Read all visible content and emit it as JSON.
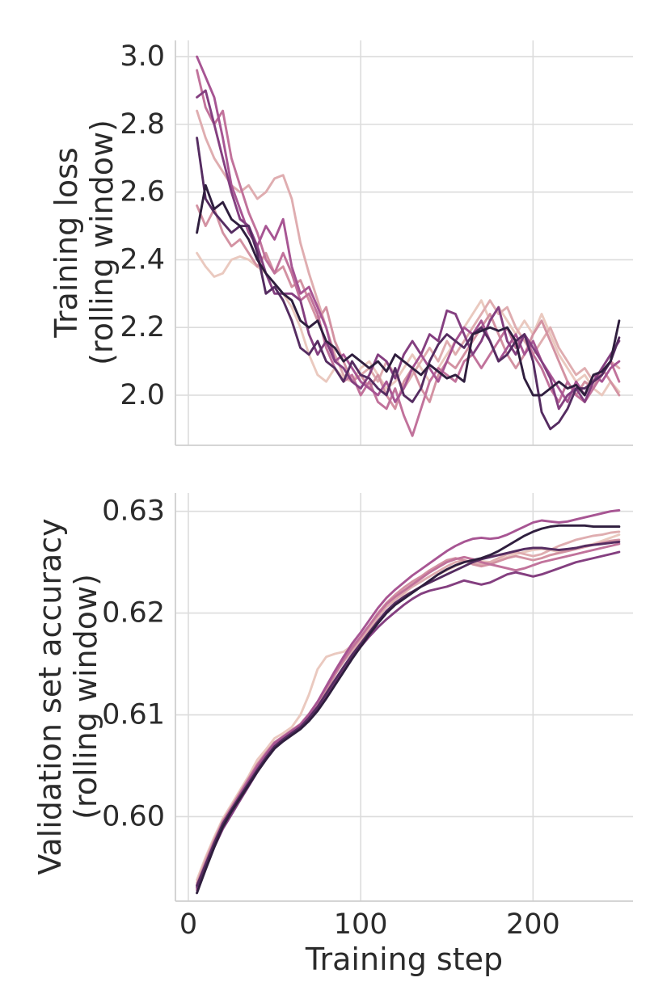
{
  "figure": {
    "background": "#ffffff",
    "text_color": "#2b2b2b",
    "grid_color": "#dcdcdc",
    "spine_color": "#cfcfcf",
    "palette": [
      "#eac9bf",
      "#dfadb0",
      "#d392a2",
      "#c1729b",
      "#a75593",
      "#843f80",
      "#552c61",
      "#2f1e3e"
    ]
  },
  "chart_data": [
    {
      "type": "line",
      "title": "",
      "ylabel": "Training loss\n(rolling window)",
      "xlabel": "",
      "grid": true,
      "legend": false,
      "xlim": [
        -7.5,
        258
      ],
      "ylim": [
        1.852,
        3.048
      ],
      "ytick_values": [
        2.0,
        2.2,
        2.4,
        2.6,
        2.8,
        3.0
      ],
      "ytick_labels": [
        "2.0",
        "2.2",
        "2.4",
        "2.6",
        "2.8",
        "3.0"
      ],
      "xtick_values": [
        0,
        100,
        200
      ],
      "xtick_labels": [],
      "x": [
        5,
        10,
        15,
        20,
        25,
        30,
        35,
        40,
        45,
        50,
        55,
        60,
        65,
        70,
        75,
        80,
        85,
        90,
        95,
        100,
        105,
        110,
        115,
        120,
        125,
        130,
        135,
        140,
        145,
        150,
        155,
        160,
        165,
        170,
        175,
        180,
        185,
        190,
        195,
        200,
        205,
        210,
        215,
        220,
        225,
        230,
        235,
        240,
        245,
        250
      ],
      "series": [
        {
          "color": "#eac9bf",
          "values": [
            2.42,
            2.38,
            2.35,
            2.36,
            2.4,
            2.41,
            2.4,
            2.38,
            2.36,
            2.33,
            2.3,
            2.26,
            2.2,
            2.12,
            2.06,
            2.04,
            2.08,
            2.05,
            2.04,
            2.08,
            2.1,
            2.06,
            2.02,
            2.04,
            2.08,
            2.12,
            2.08,
            2.04,
            2.08,
            2.12,
            2.16,
            2.2,
            2.24,
            2.28,
            2.22,
            2.26,
            2.22,
            2.18,
            2.22,
            2.18,
            2.24,
            2.18,
            2.12,
            2.08,
            2.04,
            2.06,
            2.02,
            2.0,
            2.04,
            2.01
          ]
        },
        {
          "color": "#dfadb0",
          "values": [
            2.84,
            2.76,
            2.7,
            2.66,
            2.62,
            2.6,
            2.62,
            2.58,
            2.6,
            2.64,
            2.65,
            2.58,
            2.45,
            2.36,
            2.28,
            2.2,
            2.12,
            2.06,
            2.04,
            2.06,
            2.08,
            2.04,
            2.1,
            2.06,
            2.02,
            2.06,
            2.1,
            2.14,
            2.1,
            2.16,
            2.12,
            2.16,
            2.2,
            2.24,
            2.28,
            2.24,
            2.26,
            2.2,
            2.16,
            2.12,
            2.16,
            2.2,
            2.14,
            2.1,
            2.06,
            2.08,
            2.04,
            2.06,
            2.1,
            2.08
          ]
        },
        {
          "color": "#d392a2",
          "values": [
            2.56,
            2.5,
            2.55,
            2.48,
            2.44,
            2.46,
            2.42,
            2.38,
            2.42,
            2.36,
            2.38,
            2.32,
            2.34,
            2.28,
            2.22,
            2.26,
            2.16,
            2.1,
            2.04,
            2.06,
            2.02,
            2.06,
            2.0,
            1.96,
            2.04,
            2.08,
            2.02,
            1.98,
            2.06,
            2.1,
            2.08,
            2.12,
            2.16,
            2.2,
            2.24,
            2.18,
            2.12,
            2.08,
            2.12,
            2.18,
            2.22,
            2.16,
            2.1,
            2.04,
            2.0,
            2.04,
            2.02,
            2.08,
            2.04,
            2.0
          ]
        },
        {
          "color": "#c1729b",
          "values": [
            2.96,
            2.85,
            2.8,
            2.84,
            2.7,
            2.62,
            2.54,
            2.48,
            2.4,
            2.36,
            2.42,
            2.36,
            2.28,
            2.3,
            2.24,
            2.14,
            2.08,
            2.04,
            2.06,
            2.0,
            2.04,
            1.98,
            1.96,
            2.02,
            1.94,
            1.88,
            1.96,
            2.04,
            2.08,
            2.06,
            2.04,
            2.1,
            2.12,
            2.08,
            2.12,
            2.16,
            2.2,
            2.14,
            2.18,
            2.12,
            2.08,
            2.02,
            1.98,
            2.04,
            2.0,
            1.98,
            2.02,
            2.06,
            2.1,
            2.04
          ]
        },
        {
          "color": "#a75593",
          "values": [
            3.0,
            2.94,
            2.88,
            2.76,
            2.62,
            2.55,
            2.48,
            2.44,
            2.5,
            2.46,
            2.52,
            2.38,
            2.3,
            2.32,
            2.26,
            2.2,
            2.1,
            2.12,
            2.08,
            2.04,
            2.02,
            2.0,
            2.04,
            1.98,
            2.02,
            2.08,
            2.12,
            2.08,
            2.04,
            2.1,
            2.16,
            2.2,
            2.18,
            2.22,
            2.16,
            2.1,
            2.14,
            2.18,
            2.12,
            2.16,
            2.1,
            2.06,
            2.02,
            1.98,
            2.04,
            2.0,
            2.06,
            2.04,
            2.08,
            2.1
          ]
        },
        {
          "color": "#843f80",
          "values": [
            2.88,
            2.9,
            2.8,
            2.7,
            2.6,
            2.52,
            2.5,
            2.44,
            2.36,
            2.3,
            2.3,
            2.3,
            2.28,
            2.18,
            2.12,
            2.16,
            2.1,
            2.08,
            2.04,
            2.02,
            2.06,
            2.12,
            2.1,
            2.05,
            2.12,
            2.16,
            2.12,
            2.18,
            2.16,
            2.25,
            2.24,
            2.18,
            2.12,
            2.16,
            2.22,
            2.26,
            2.16,
            2.12,
            2.18,
            2.14,
            2.1,
            2.05,
            1.96,
            2.0,
            2.02,
            1.98,
            2.04,
            2.08,
            2.12,
            2.16
          ]
        },
        {
          "color": "#552c61",
          "values": [
            2.76,
            2.58,
            2.54,
            2.51,
            2.48,
            2.5,
            2.5,
            2.42,
            2.3,
            2.32,
            2.28,
            2.22,
            2.14,
            2.12,
            2.16,
            2.1,
            2.08,
            2.04,
            2.1,
            2.06,
            2.05,
            2.02,
            2.0,
            2.08,
            2.0,
            1.98,
            2.02,
            2.1,
            2.15,
            2.18,
            2.16,
            2.14,
            2.18,
            2.2,
            2.16,
            2.1,
            2.12,
            2.16,
            2.18,
            2.1,
            1.95,
            1.9,
            1.92,
            1.96,
            2.02,
            2.02,
            2.04,
            2.06,
            2.1,
            2.17
          ]
        },
        {
          "color": "#2f1e3e",
          "values": [
            2.48,
            2.62,
            2.55,
            2.57,
            2.52,
            2.5,
            2.46,
            2.4,
            2.36,
            2.33,
            2.3,
            2.28,
            2.22,
            2.2,
            2.22,
            2.16,
            2.14,
            2.1,
            2.12,
            2.1,
            2.08,
            2.1,
            2.07,
            2.12,
            2.1,
            2.08,
            2.06,
            2.09,
            2.07,
            2.05,
            2.06,
            2.04,
            2.18,
            2.19,
            2.2,
            2.19,
            2.2,
            2.16,
            2.05,
            2.0,
            2.0,
            2.02,
            2.04,
            2.02,
            2.03,
            2.0,
            2.06,
            2.07,
            2.1,
            2.22
          ]
        }
      ]
    },
    {
      "type": "line",
      "title": "",
      "ylabel": "Validation set accuracy\n(rolling window)",
      "xlabel": "Training step",
      "grid": true,
      "legend": false,
      "xlim": [
        -7.5,
        258
      ],
      "ylim": [
        0.5917,
        0.6318
      ],
      "ytick_values": [
        0.6,
        0.61,
        0.62,
        0.63
      ],
      "ytick_labels": [
        "0.60",
        "0.61",
        "0.62",
        "0.63"
      ],
      "xtick_values": [
        0,
        100,
        200
      ],
      "xtick_labels": [
        "0",
        "100",
        "200"
      ],
      "x": [
        5,
        10,
        15,
        20,
        25,
        30,
        35,
        40,
        45,
        50,
        55,
        60,
        65,
        70,
        75,
        80,
        85,
        90,
        95,
        100,
        105,
        110,
        115,
        120,
        125,
        130,
        135,
        140,
        145,
        150,
        155,
        160,
        165,
        170,
        175,
        180,
        185,
        190,
        195,
        200,
        205,
        210,
        215,
        220,
        225,
        230,
        235,
        240,
        245,
        250
      ],
      "series": [
        {
          "color": "#eac9bf",
          "values": [
            0.5938,
            0.596,
            0.598,
            0.5998,
            0.6012,
            0.6026,
            0.604,
            0.6056,
            0.6066,
            0.6077,
            0.6082,
            0.6088,
            0.61,
            0.612,
            0.6145,
            0.6157,
            0.616,
            0.6162,
            0.6168,
            0.6175,
            0.6185,
            0.6198,
            0.6208,
            0.6214,
            0.6218,
            0.6221,
            0.6226,
            0.6232,
            0.6238,
            0.6242,
            0.6246,
            0.625,
            0.6252,
            0.6251,
            0.625,
            0.6252,
            0.6255,
            0.6258,
            0.626,
            0.6262,
            0.6263,
            0.6262,
            0.626,
            0.6262,
            0.6264,
            0.6266,
            0.6268,
            0.6271,
            0.6274,
            0.6277
          ]
        },
        {
          "color": "#dfadb0",
          "values": [
            0.5935,
            0.5958,
            0.5978,
            0.5996,
            0.601,
            0.6024,
            0.6038,
            0.6052,
            0.6063,
            0.6073,
            0.6079,
            0.6084,
            0.609,
            0.61,
            0.6112,
            0.6126,
            0.614,
            0.6152,
            0.6163,
            0.6173,
            0.6184,
            0.6196,
            0.6206,
            0.6213,
            0.622,
            0.6226,
            0.6231,
            0.6236,
            0.6241,
            0.6246,
            0.625,
            0.6252,
            0.625,
            0.6248,
            0.625,
            0.6254,
            0.6258,
            0.626,
            0.6258,
            0.6256,
            0.6258,
            0.6262,
            0.6266,
            0.6269,
            0.6272,
            0.6274,
            0.6276,
            0.6277,
            0.6279,
            0.628
          ]
        },
        {
          "color": "#d392a2",
          "values": [
            0.593,
            0.5952,
            0.5974,
            0.5994,
            0.6008,
            0.6022,
            0.6036,
            0.605,
            0.6062,
            0.6072,
            0.6078,
            0.6083,
            0.6089,
            0.6098,
            0.611,
            0.6124,
            0.6139,
            0.6153,
            0.6165,
            0.6176,
            0.6188,
            0.62,
            0.621,
            0.6218,
            0.6225,
            0.6231,
            0.6236,
            0.6242,
            0.6247,
            0.6252,
            0.6254,
            0.6252,
            0.6248,
            0.6246,
            0.6248,
            0.6251,
            0.6254,
            0.6256,
            0.6254,
            0.6252,
            0.6254,
            0.6257,
            0.6259,
            0.6261,
            0.6263,
            0.6265,
            0.6267,
            0.6269,
            0.6271,
            0.6272
          ]
        },
        {
          "color": "#c1729b",
          "values": [
            0.5933,
            0.5955,
            0.5976,
            0.5995,
            0.6009,
            0.6023,
            0.6037,
            0.6051,
            0.6062,
            0.6073,
            0.6079,
            0.6085,
            0.6091,
            0.6101,
            0.6113,
            0.6127,
            0.6141,
            0.6154,
            0.6166,
            0.6177,
            0.6188,
            0.6199,
            0.6209,
            0.6216,
            0.6222,
            0.6228,
            0.6234,
            0.624,
            0.6245,
            0.625,
            0.6253,
            0.6255,
            0.6253,
            0.625,
            0.6248,
            0.6246,
            0.6244,
            0.6242,
            0.6244,
            0.6247,
            0.625,
            0.6252,
            0.6254,
            0.6256,
            0.6258,
            0.626,
            0.6262,
            0.6264,
            0.6266,
            0.6268
          ]
        },
        {
          "color": "#a75593",
          "values": [
            0.5928,
            0.595,
            0.5972,
            0.5992,
            0.6007,
            0.6021,
            0.6035,
            0.6049,
            0.6061,
            0.6072,
            0.6078,
            0.6084,
            0.609,
            0.61,
            0.6113,
            0.6128,
            0.6143,
            0.6157,
            0.617,
            0.6181,
            0.6193,
            0.6205,
            0.6215,
            0.6223,
            0.623,
            0.6237,
            0.6243,
            0.6249,
            0.6255,
            0.6261,
            0.6266,
            0.627,
            0.6273,
            0.6274,
            0.6273,
            0.6274,
            0.6277,
            0.6281,
            0.6285,
            0.6289,
            0.6291,
            0.629,
            0.6289,
            0.629,
            0.6292,
            0.6294,
            0.6296,
            0.6298,
            0.63,
            0.6301
          ]
        },
        {
          "color": "#843f80",
          "values": [
            0.593,
            0.595,
            0.597,
            0.5988,
            0.6002,
            0.6016,
            0.603,
            0.6044,
            0.6056,
            0.6067,
            0.6075,
            0.6082,
            0.6088,
            0.6096,
            0.6106,
            0.6118,
            0.6131,
            0.6144,
            0.6156,
            0.6167,
            0.6177,
            0.6186,
            0.6194,
            0.6201,
            0.6208,
            0.6214,
            0.6219,
            0.6222,
            0.6224,
            0.6226,
            0.6229,
            0.6232,
            0.623,
            0.6228,
            0.623,
            0.6234,
            0.6238,
            0.624,
            0.6238,
            0.6236,
            0.6238,
            0.6241,
            0.6244,
            0.6247,
            0.625,
            0.6252,
            0.6254,
            0.6256,
            0.6258,
            0.626
          ]
        },
        {
          "color": "#552c61",
          "values": [
            0.5932,
            0.5953,
            0.5974,
            0.5993,
            0.6007,
            0.602,
            0.6033,
            0.6046,
            0.6058,
            0.6069,
            0.6076,
            0.6082,
            0.6088,
            0.6097,
            0.6108,
            0.6121,
            0.6134,
            0.6147,
            0.6159,
            0.617,
            0.6181,
            0.6192,
            0.6202,
            0.621,
            0.6216,
            0.6221,
            0.6226,
            0.623,
            0.6234,
            0.6238,
            0.6242,
            0.6246,
            0.625,
            0.6253,
            0.6255,
            0.6257,
            0.6259,
            0.6261,
            0.6263,
            0.6264,
            0.6264,
            0.6263,
            0.6262,
            0.6263,
            0.6264,
            0.6266,
            0.6267,
            0.6268,
            0.6269,
            0.627
          ]
        },
        {
          "color": "#2f1e3e",
          "values": [
            0.5925,
            0.5948,
            0.597,
            0.599,
            0.6005,
            0.6018,
            0.6031,
            0.6044,
            0.6056,
            0.6067,
            0.6074,
            0.608,
            0.6086,
            0.6094,
            0.6104,
            0.6116,
            0.6129,
            0.6142,
            0.6155,
            0.6167,
            0.6179,
            0.619,
            0.62,
            0.6208,
            0.6214,
            0.622,
            0.6226,
            0.6232,
            0.6238,
            0.6243,
            0.6247,
            0.625,
            0.6252,
            0.6254,
            0.6257,
            0.6261,
            0.6266,
            0.6271,
            0.6276,
            0.628,
            0.6283,
            0.6285,
            0.6286,
            0.6286,
            0.6286,
            0.6286,
            0.6285,
            0.6285,
            0.6285,
            0.6285
          ]
        }
      ]
    }
  ]
}
